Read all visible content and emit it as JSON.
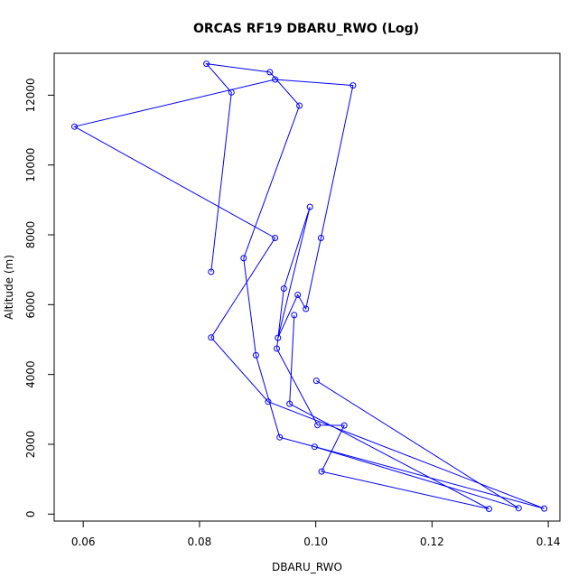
{
  "chart_data": {
    "type": "line",
    "title": "ORCAS RF19 DBARU_RWO (Log)",
    "xlabel": "DBARU_RWO",
    "ylabel": "Altitude (m)",
    "xlim": [
      0.055,
      0.142
    ],
    "ylim": [
      -200,
      13200
    ],
    "x_ticks": [
      0.06,
      0.08,
      0.1,
      0.12,
      0.14
    ],
    "x_tick_labels": [
      "0.06",
      "0.08",
      "0.10",
      "0.12",
      "0.14"
    ],
    "y_ticks": [
      0,
      2000,
      4000,
      6000,
      8000,
      10000,
      12000
    ],
    "y_tick_labels": [
      "0",
      "2000",
      "4000",
      "6000",
      "8000",
      "10000",
      "12000"
    ],
    "grid": false,
    "legend": "none",
    "line_color": "#0000ff",
    "marker": "open-circle",
    "series": [
      {
        "points": [
          [
            0.082,
            6940
          ],
          [
            0.0855,
            12080
          ],
          [
            0.0812,
            12900
          ],
          [
            0.0921,
            12660
          ],
          [
            0.0972,
            11700
          ],
          [
            0.0876,
            7330
          ],
          [
            0.0897,
            4550
          ],
          [
            0.0938,
            2200
          ],
          [
            0.1393,
            160
          ],
          [
            0.0918,
            3220
          ],
          [
            0.082,
            5060
          ],
          [
            0.093,
            7910
          ],
          [
            0.0585,
            11100
          ],
          [
            0.093,
            12450
          ],
          [
            0.1064,
            12280
          ],
          [
            0.1009,
            7910
          ],
          [
            0.0983,
            5880
          ],
          [
            0.0969,
            6280
          ],
          [
            0.0935,
            5050
          ],
          [
            0.099,
            8800
          ],
          [
            0.0945,
            6460
          ],
          [
            0.0933,
            4740
          ],
          [
            0.1003,
            2550
          ],
          [
            0.1049,
            2540
          ],
          [
            0.101,
            1220
          ],
          [
            0.1298,
            150
          ],
          [
            0.0955,
            3160
          ],
          [
            0.0963,
            5700
          ]
        ]
      },
      {
        "points": [
          [
            0.1001,
            3820
          ],
          [
            0.1349,
            170
          ],
          [
            0.0998,
            1930
          ]
        ]
      }
    ]
  }
}
